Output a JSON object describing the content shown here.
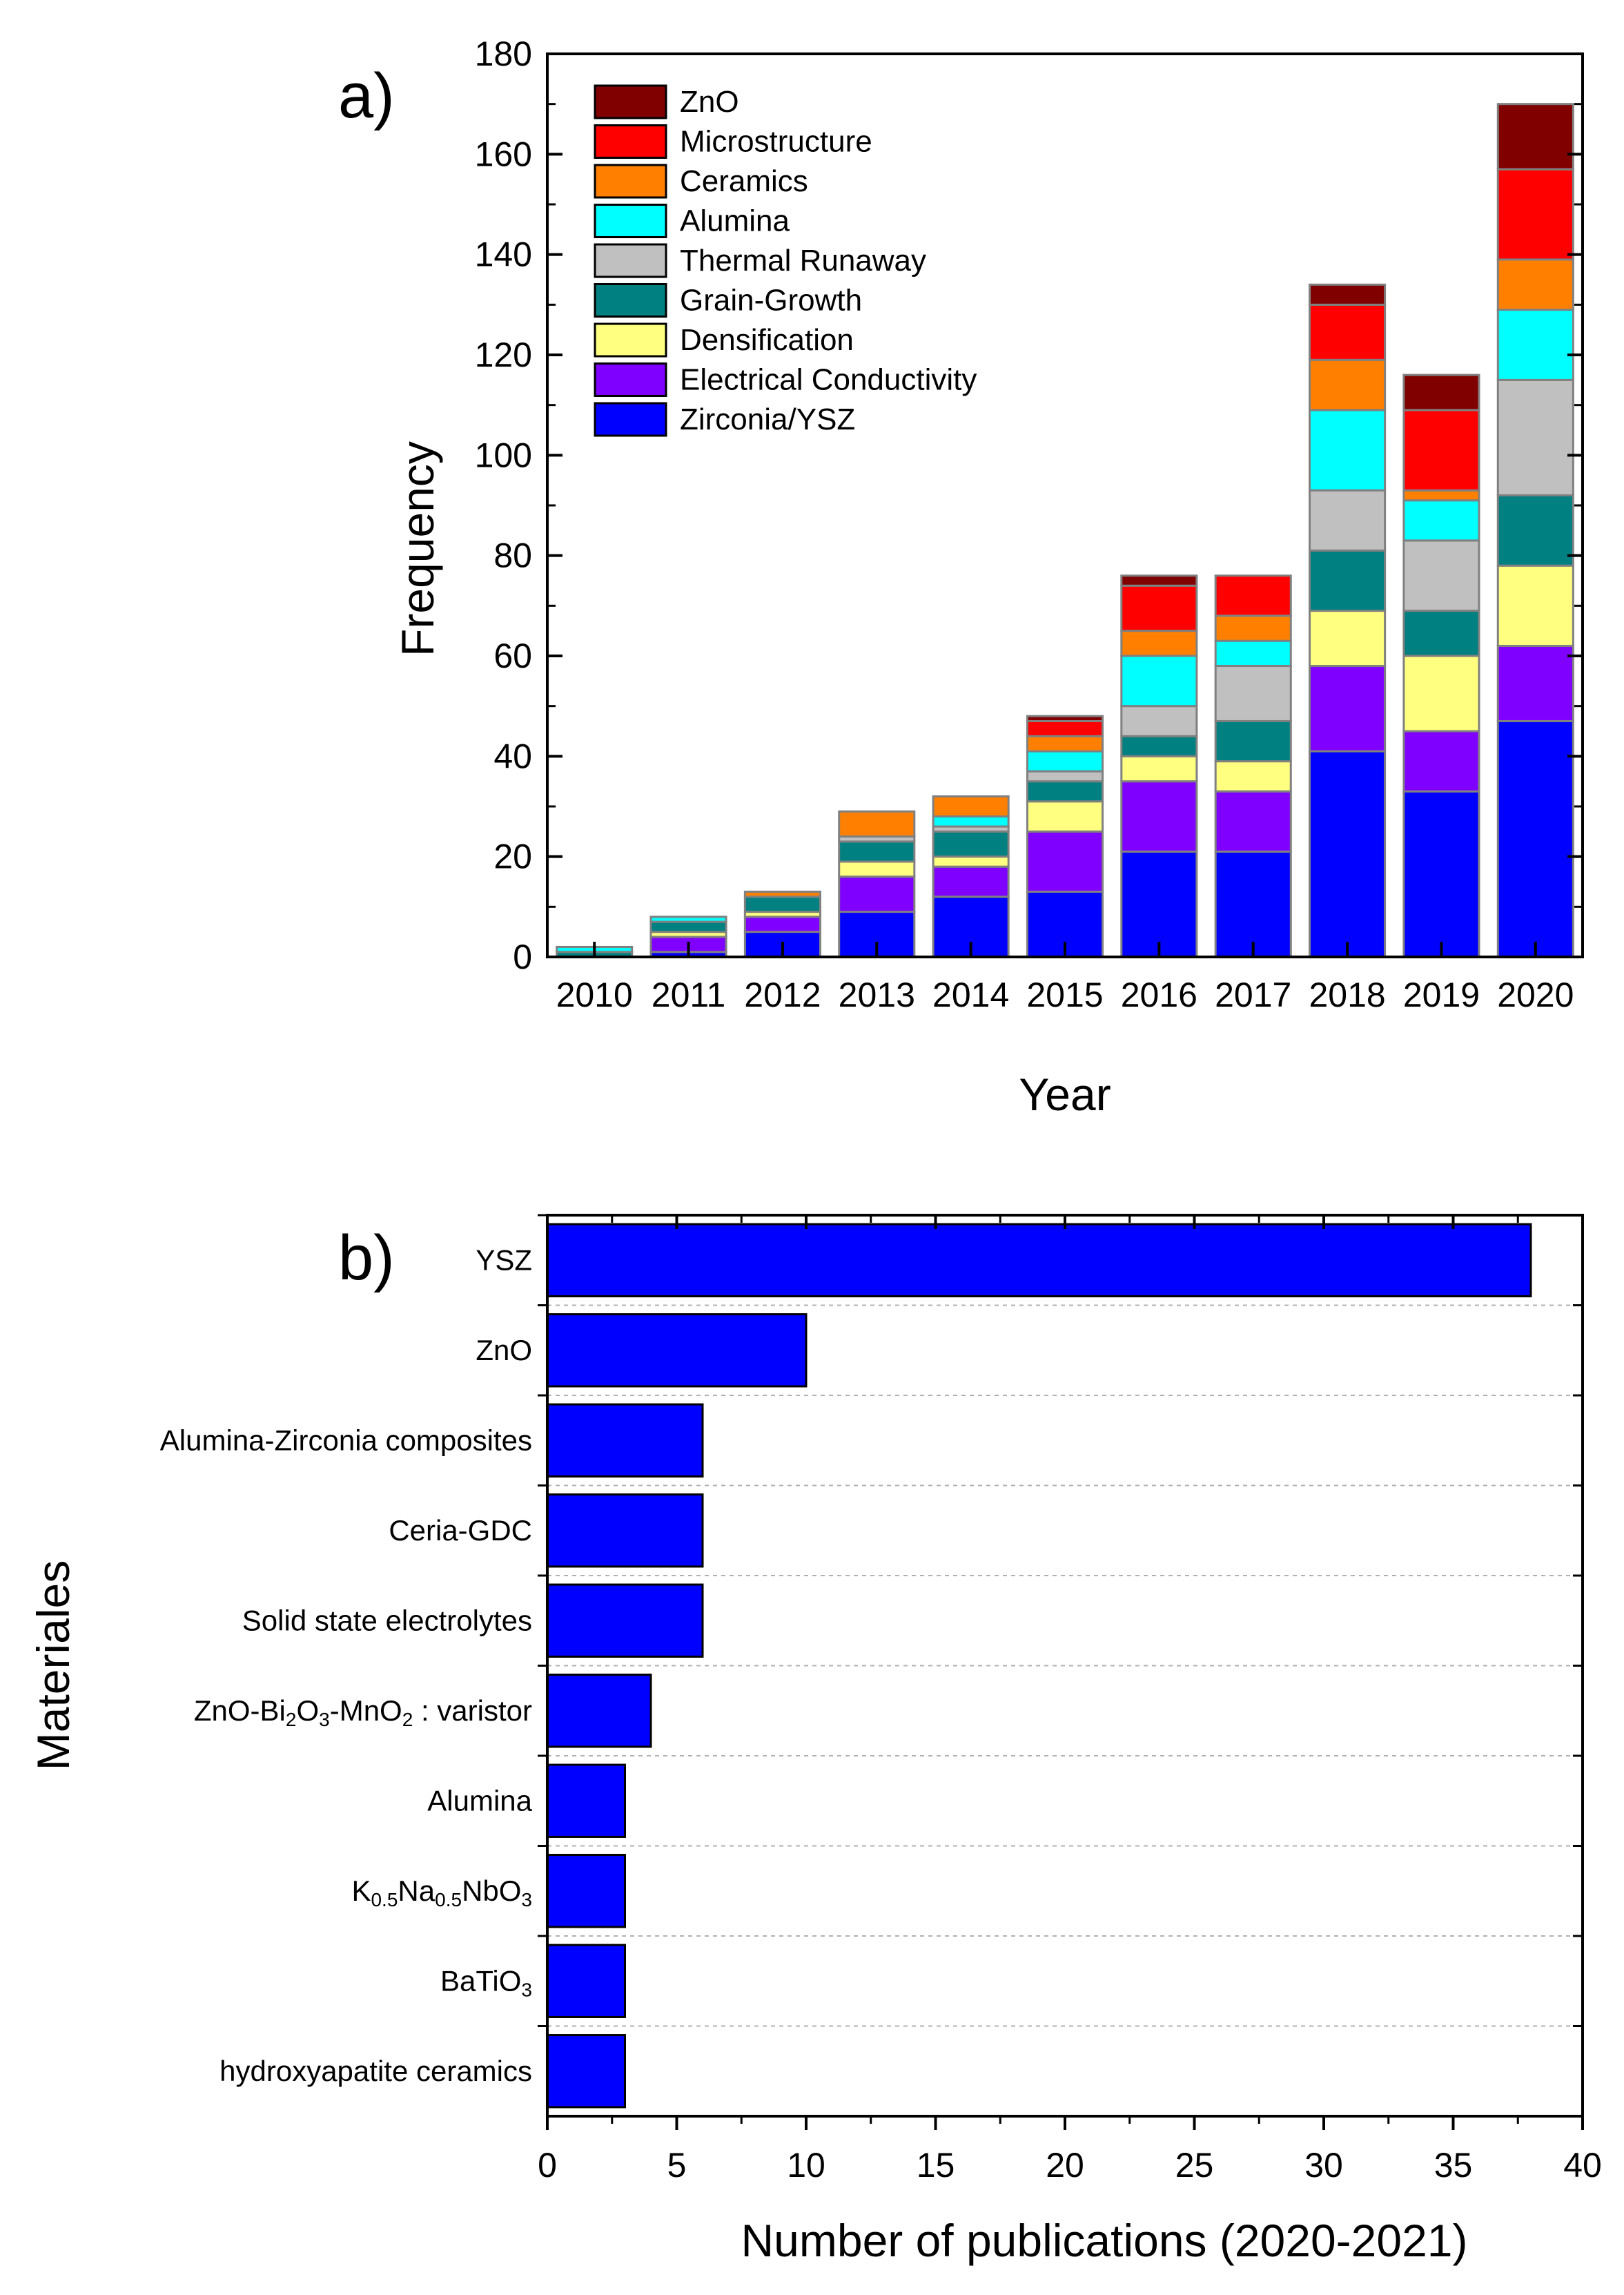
{
  "chart_data": [
    {
      "type": "bar",
      "stacked": true,
      "orientation": "vertical",
      "panel_label": "a)",
      "xlabel": "Year",
      "ylabel": "Frequency",
      "ylim": [
        0,
        180
      ],
      "ytick_step": 20,
      "legend_position": "top-left",
      "categories": [
        "2010",
        "2011",
        "2012",
        "2013",
        "2014",
        "2015",
        "2016",
        "2017",
        "2018",
        "2019",
        "2020"
      ],
      "series": [
        {
          "name": "Zirconia/YSZ",
          "color": "#0000FF",
          "values": [
            0,
            1,
            5,
            9,
            12,
            13,
            21,
            21,
            41,
            33,
            47
          ]
        },
        {
          "name": "Electrical Conductivity",
          "color": "#8000FF",
          "values": [
            0,
            3,
            3,
            7,
            6,
            12,
            14,
            12,
            17,
            12,
            15
          ]
        },
        {
          "name": "Densification",
          "color": "#FFFF80",
          "values": [
            0,
            1,
            1,
            3,
            2,
            6,
            5,
            6,
            11,
            15,
            16
          ]
        },
        {
          "name": "Grain-Growth",
          "color": "#008080",
          "values": [
            1,
            2,
            3,
            4,
            5,
            4,
            4,
            8,
            12,
            9,
            14
          ]
        },
        {
          "name": "Thermal Runaway",
          "color": "#C0C0C0",
          "values": [
            0,
            0,
            0,
            1,
            1,
            2,
            6,
            11,
            12,
            14,
            23
          ]
        },
        {
          "name": "Alumina",
          "color": "#00FFFF",
          "values": [
            1,
            1,
            0,
            0,
            2,
            4,
            10,
            5,
            16,
            8,
            14
          ]
        },
        {
          "name": "Ceramics",
          "color": "#FF8000",
          "values": [
            0,
            0,
            1,
            5,
            4,
            3,
            5,
            5,
            10,
            2,
            10
          ]
        },
        {
          "name": "Microstructure",
          "color": "#FF0000",
          "values": [
            0,
            0,
            0,
            0,
            0,
            3,
            9,
            8,
            11,
            16,
            18
          ]
        },
        {
          "name": "ZnO",
          "color": "#800000",
          "values": [
            0,
            0,
            0,
            0,
            0,
            1,
            2,
            0,
            4,
            7,
            13
          ]
        }
      ]
    },
    {
      "type": "bar",
      "orientation": "horizontal",
      "panel_label": "b)",
      "xlabel": "Number of publications (2020-2021)",
      "ylabel": "Materiales",
      "xlim": [
        0,
        40
      ],
      "xtick_step": 5,
      "color": "#0000FF",
      "categories": [
        {
          "label": "YSZ",
          "value": 38
        },
        {
          "label": "ZnO",
          "value": 10
        },
        {
          "label": "Alumina-Zirconia composites",
          "value": 6
        },
        {
          "label": "Ceria-GDC",
          "value": 6
        },
        {
          "label": "Solid state electrolytes",
          "value": 6
        },
        {
          "label": "ZnO-Bi2O3-MnO2 varistor",
          "value": 4,
          "rich": [
            [
              "ZnO-Bi",
              ""
            ],
            [
              "2",
              "sub"
            ],
            [
              "O",
              ""
            ],
            [
              "3",
              "sub"
            ],
            [
              "-MnO",
              ""
            ],
            [
              "2",
              "sub"
            ],
            [
              "  : varistor",
              ""
            ]
          ]
        },
        {
          "label": "Alumina",
          "value": 3
        },
        {
          "label": "K0.5Na0.5NbO3",
          "value": 3,
          "rich": [
            [
              "K",
              ""
            ],
            [
              "0.5",
              "sub"
            ],
            [
              "Na",
              ""
            ],
            [
              "0.5",
              "sub"
            ],
            [
              "NbO",
              ""
            ],
            [
              "3",
              "sub"
            ]
          ]
        },
        {
          "label": "BaTiO3",
          "value": 3,
          "rich": [
            [
              "BaTiO",
              ""
            ],
            [
              "3",
              "sub"
            ]
          ]
        },
        {
          "label": "hydroxyapatite ceramics",
          "value": 3
        }
      ]
    }
  ]
}
